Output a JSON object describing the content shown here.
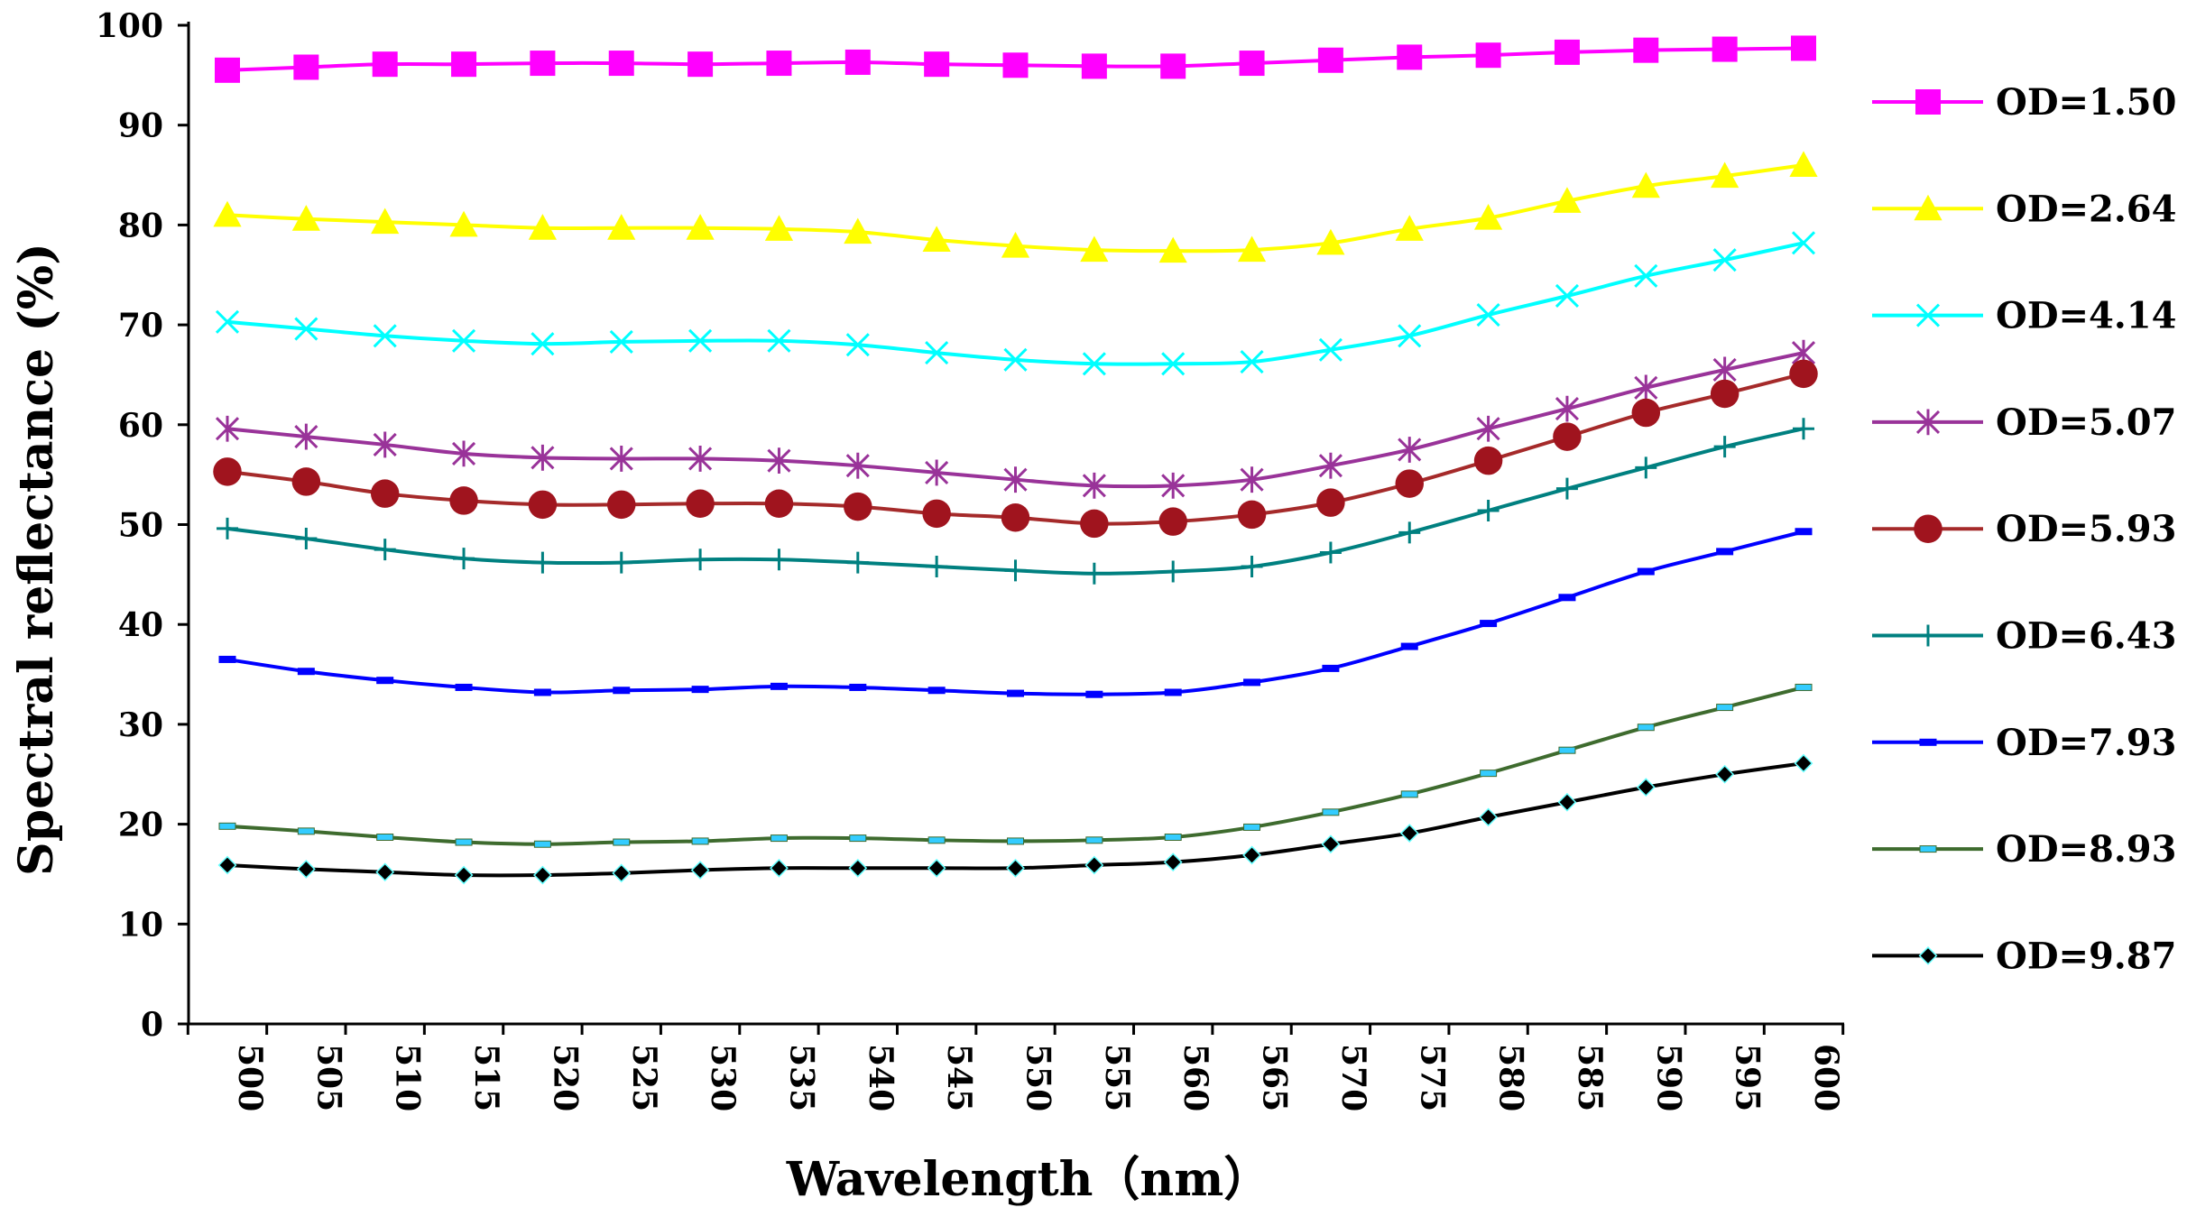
{
  "chart_data": {
    "type": "line",
    "title": "",
    "xlabel": "Wavelength（nm）",
    "ylabel": "Spectral reflectance (%)",
    "ylim": [
      0,
      100
    ],
    "xlim": [
      500,
      600
    ],
    "yticks": [
      "0",
      "10",
      "20",
      "30",
      "40",
      "50",
      "60",
      "70",
      "80",
      "90",
      "100"
    ],
    "x": [
      500,
      505,
      510,
      515,
      520,
      525,
      530,
      535,
      540,
      545,
      550,
      555,
      560,
      565,
      570,
      575,
      580,
      585,
      590,
      595,
      600
    ],
    "xtick_labels": [
      "500",
      "505",
      "510",
      "515",
      "520",
      "525",
      "530",
      "535",
      "540",
      "545",
      "550",
      "555",
      "560",
      "565",
      "570",
      "575",
      "580",
      "585",
      "590",
      "595",
      "600"
    ],
    "grid": false,
    "legend_position": "right",
    "series": [
      {
        "name": "OD=1.50",
        "color": "#FF00FF",
        "marker": "square",
        "marker_fill": "#FF00FF",
        "values": [
          95.5,
          95.8,
          96.1,
          96.1,
          96.2,
          96.2,
          96.1,
          96.2,
          96.3,
          96.1,
          96.0,
          95.9,
          95.9,
          96.2,
          96.5,
          96.8,
          97.0,
          97.3,
          97.5,
          97.6,
          97.7
        ]
      },
      {
        "name": "OD=2.64",
        "color": "#FFFF00",
        "marker": "triangle",
        "marker_fill": "#FFFF00",
        "values": [
          81.0,
          80.6,
          80.3,
          80.0,
          79.7,
          79.7,
          79.7,
          79.6,
          79.3,
          78.5,
          77.9,
          77.5,
          77.4,
          77.5,
          78.2,
          79.6,
          80.7,
          82.4,
          83.9,
          84.9,
          86.0
        ]
      },
      {
        "name": "OD=4.14",
        "color": "#00FFFF",
        "marker": "x",
        "marker_fill": "#00FFFF",
        "values": [
          70.3,
          69.6,
          68.9,
          68.4,
          68.1,
          68.3,
          68.4,
          68.4,
          68.0,
          67.2,
          66.5,
          66.1,
          66.1,
          66.3,
          67.5,
          68.9,
          71.0,
          72.9,
          74.9,
          76.5,
          78.2
        ]
      },
      {
        "name": "OD=5.07",
        "color": "#993399",
        "marker": "star",
        "marker_fill": "#993399",
        "values": [
          59.6,
          58.8,
          58.0,
          57.1,
          56.7,
          56.6,
          56.6,
          56.4,
          55.9,
          55.2,
          54.5,
          53.9,
          53.9,
          54.5,
          55.9,
          57.5,
          59.6,
          61.6,
          63.7,
          65.5,
          67.2
        ]
      },
      {
        "name": "OD=5.93",
        "color": "#A52A2A",
        "marker": "circle",
        "marker_fill": "#A0141E",
        "values": [
          55.3,
          54.3,
          53.1,
          52.4,
          52.0,
          52.0,
          52.1,
          52.1,
          51.8,
          51.1,
          50.7,
          50.1,
          50.3,
          51.0,
          52.2,
          54.1,
          56.4,
          58.8,
          61.2,
          63.1,
          65.1
        ]
      },
      {
        "name": "OD=6.43",
        "color": "#008080",
        "marker": "plus",
        "marker_fill": "#008080",
        "values": [
          49.6,
          48.6,
          47.5,
          46.6,
          46.2,
          46.2,
          46.5,
          46.5,
          46.2,
          45.8,
          45.4,
          45.1,
          45.3,
          45.8,
          47.2,
          49.2,
          51.4,
          53.6,
          55.7,
          57.8,
          59.6
        ]
      },
      {
        "name": "OD=7.93",
        "color": "#0000FF",
        "marker": "dash",
        "marker_fill": "#0000FF",
        "values": [
          36.5,
          35.3,
          34.4,
          33.7,
          33.2,
          33.4,
          33.5,
          33.8,
          33.7,
          33.4,
          33.1,
          33.0,
          33.2,
          34.2,
          35.6,
          37.8,
          40.1,
          42.7,
          45.3,
          47.3,
          49.3
        ]
      },
      {
        "name": "OD=8.93",
        "color": "#3E6B2E",
        "marker": "dash",
        "marker_fill": "#33CCFF",
        "values": [
          19.8,
          19.3,
          18.7,
          18.2,
          18.0,
          18.2,
          18.3,
          18.6,
          18.6,
          18.4,
          18.3,
          18.4,
          18.7,
          19.7,
          21.2,
          23.0,
          25.1,
          27.4,
          29.7,
          31.7,
          33.7
        ]
      },
      {
        "name": "OD=9.87",
        "color": "#000000",
        "marker": "diamond",
        "marker_fill": "#000000",
        "values": [
          15.9,
          15.5,
          15.2,
          14.9,
          14.9,
          15.1,
          15.4,
          15.6,
          15.6,
          15.6,
          15.6,
          15.9,
          16.2,
          16.9,
          18.0,
          19.1,
          20.7,
          22.2,
          23.7,
          25.0,
          26.1
        ]
      }
    ]
  }
}
